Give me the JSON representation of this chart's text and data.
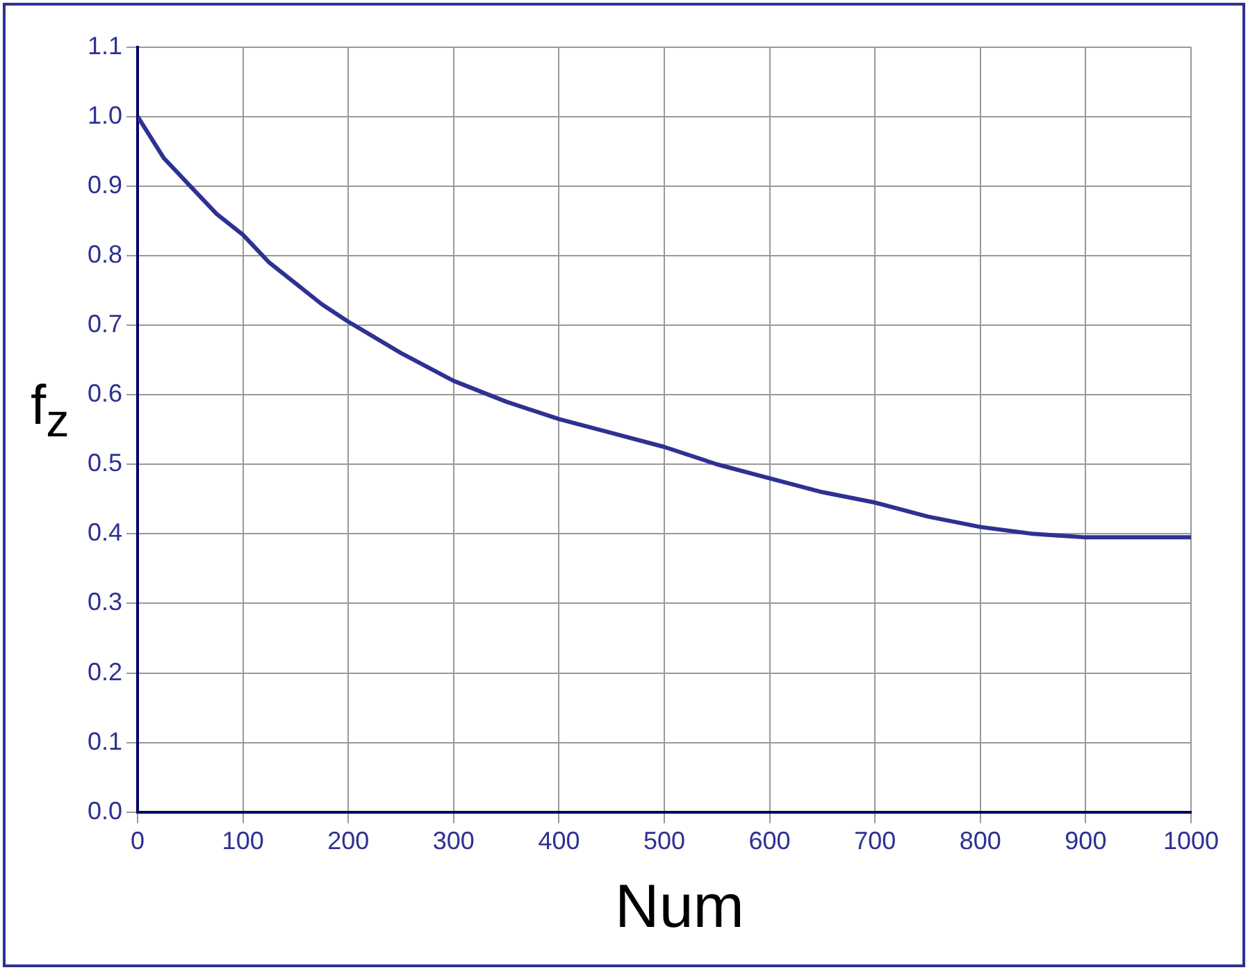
{
  "chart_data": {
    "type": "line",
    "xlabel": "Num",
    "ylabel": "f$_{z}$",
    "x": [
      0,
      25,
      50,
      75,
      100,
      125,
      150,
      175,
      200,
      250,
      300,
      350,
      400,
      450,
      500,
      550,
      600,
      650,
      700,
      750,
      800,
      850,
      900,
      950,
      1000
    ],
    "series": [
      {
        "color": "#2e3192",
        "values": [
          1.0,
          0.94,
          0.9,
          0.86,
          0.83,
          0.79,
          0.76,
          0.73,
          0.705,
          0.66,
          0.62,
          0.59,
          0.565,
          0.545,
          0.525,
          0.5,
          0.48,
          0.46,
          0.445,
          0.425,
          0.41,
          0.4,
          0.395,
          0.395,
          0.395
        ]
      }
    ],
    "xlim": [
      0,
      1000
    ],
    "xticks": [
      0,
      100,
      200,
      300,
      400,
      500,
      600,
      700,
      800,
      900,
      1000
    ],
    "ylim": [
      0,
      1.1
    ],
    "yticks": [
      {
        "value": 0,
        "label": "0.0"
      },
      0.1,
      0.2,
      0.3,
      0.4,
      0.5,
      0.6,
      0.7,
      0.8,
      0.9,
      {
        "value": 1,
        "label": "1.0"
      },
      1.1
    ],
    "grid": true,
    "legend": false,
    "marker": "none",
    "line_style": "solid"
  }
}
